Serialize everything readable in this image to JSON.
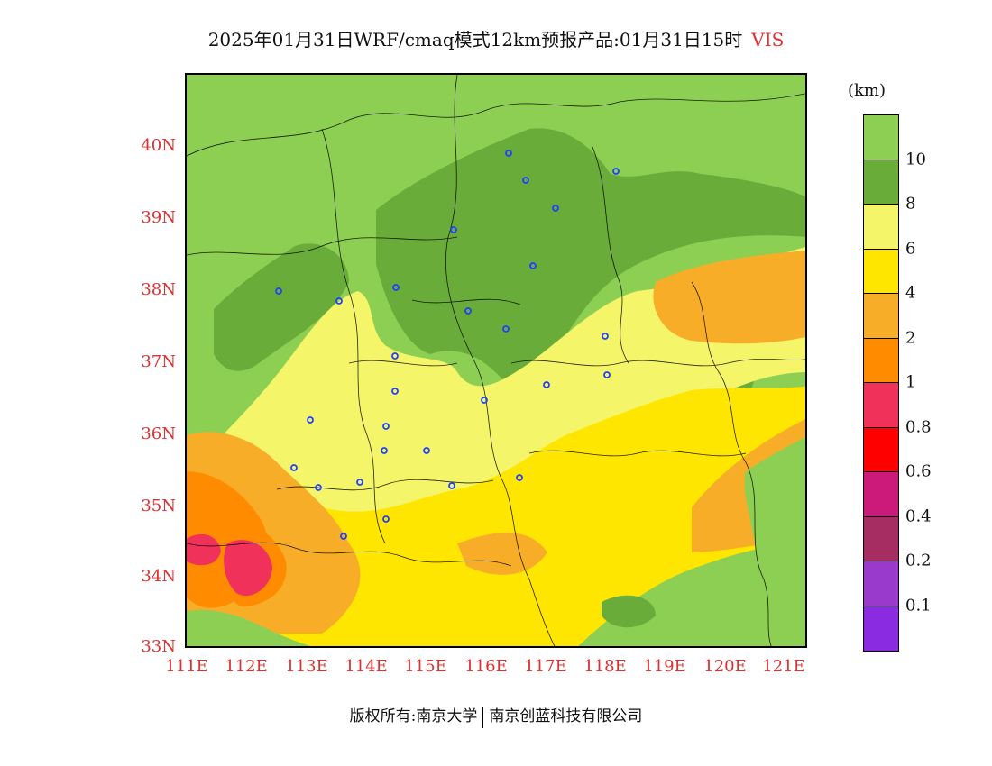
{
  "title": {
    "main": "2025年01月31日WRF/cmaq模式12km预报产品:01月31日15时",
    "variable": "VIS"
  },
  "axes": {
    "latitudes": [
      "40N",
      "39N",
      "38N",
      "37N",
      "36N",
      "35N",
      "34N",
      "33N"
    ],
    "longitudes": [
      "111E",
      "112E",
      "113E",
      "114E",
      "115E",
      "116E",
      "117E",
      "118E",
      "119E",
      "120E",
      "121E"
    ]
  },
  "legend": {
    "unit": "(km)",
    "colors": [
      "#8dcf52",
      "#6aac3a",
      "#f5f56a",
      "#ffe600",
      "#f8ad28",
      "#ff8c00",
      "#f0325a",
      "#ff0000",
      "#cc1a7a",
      "#a62d62",
      "#9a3acc",
      "#8a2be2"
    ],
    "labels": [
      "10",
      "8",
      "6",
      "4",
      "2",
      "1",
      "0.8",
      "0.6",
      "0.4",
      "0.2",
      "0.1"
    ]
  },
  "copyright": {
    "left": "版权所有:南京大学",
    "right": "南京创蓝科技有限公司"
  }
}
